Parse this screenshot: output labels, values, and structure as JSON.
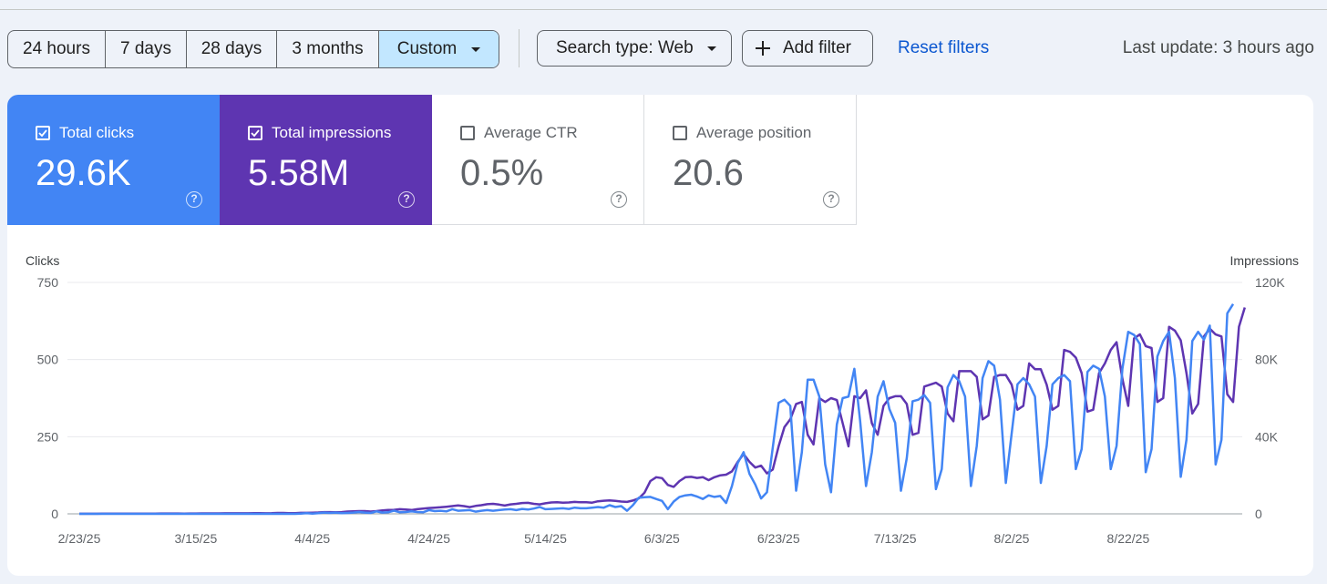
{
  "filters": {
    "ranges": [
      "24 hours",
      "7 days",
      "28 days",
      "3 months",
      "Custom"
    ],
    "selected_range": "Custom",
    "search_type": "Search type: Web",
    "add_filter": "Add filter",
    "reset": "Reset filters",
    "last_update": "Last update: 3 hours ago"
  },
  "metrics": [
    {
      "label": "Total clicks",
      "value": "29.6K",
      "checked": true,
      "color": "#4285f4"
    },
    {
      "label": "Total impressions",
      "value": "5.58M",
      "checked": true,
      "color": "#5e35b1"
    },
    {
      "label": "Average CTR",
      "value": "0.5%",
      "checked": false
    },
    {
      "label": "Average position",
      "value": "20.6",
      "checked": false
    }
  ],
  "chart_data": {
    "type": "line",
    "left_axis_label": "Clicks",
    "right_axis_label": "Impressions",
    "left_ticks": [
      "750",
      "500",
      "250",
      "0"
    ],
    "right_ticks": [
      "120K",
      "80K",
      "40K",
      "0"
    ],
    "ylim_left": [
      0,
      750
    ],
    "ylim_right": [
      0,
      120000
    ],
    "x_ticks": [
      "2/23/25",
      "3/15/25",
      "4/4/25",
      "4/24/25",
      "5/14/25",
      "6/3/25",
      "6/23/25",
      "7/13/25",
      "8/2/25",
      "8/22/25"
    ],
    "start_date": "2025-02-23",
    "series": [
      {
        "name": "Clicks",
        "axis": "left",
        "color": "#4285f4",
        "values": [
          0,
          0,
          0,
          0,
          0,
          0,
          0,
          0,
          0,
          0,
          0,
          0,
          0,
          0,
          0,
          0,
          0,
          0,
          0,
          0,
          0,
          0,
          0,
          0,
          0,
          0,
          0,
          0,
          0,
          0,
          0,
          0,
          0,
          0,
          0,
          0,
          0,
          0,
          1,
          2,
          1,
          2,
          4,
          3,
          4,
          2,
          3,
          4,
          6,
          4,
          3,
          8,
          4,
          5,
          10,
          5,
          6,
          8,
          6,
          5,
          12,
          9,
          10,
          8,
          15,
          10,
          11,
          12,
          7,
          10,
          12,
          10,
          12,
          14,
          15,
          12,
          16,
          14,
          17,
          22,
          15,
          16,
          17,
          18,
          16,
          20,
          18,
          18,
          20,
          22,
          20,
          28,
          22,
          25,
          10,
          28,
          52,
          54,
          55,
          48,
          42,
          15,
          40,
          55,
          60,
          62,
          56,
          48,
          60,
          55,
          58,
          35,
          90,
          165,
          200,
          130,
          95,
          50,
          70,
          215,
          360,
          370,
          350,
          75,
          200,
          435,
          435,
          380,
          160,
          70,
          290,
          375,
          380,
          470,
          300,
          90,
          200,
          380,
          430,
          340,
          295,
          75,
          180,
          365,
          370,
          385,
          360,
          80,
          145,
          410,
          450,
          430,
          380,
          90,
          220,
          440,
          495,
          480,
          370,
          100,
          260,
          420,
          440,
          420,
          380,
          100,
          220,
          420,
          440,
          450,
          430,
          145,
          210,
          460,
          480,
          470,
          380,
          145,
          220,
          470,
          590,
          580,
          550,
          135,
          210,
          510,
          560,
          590,
          440,
          120,
          240,
          560,
          590,
          565,
          610,
          160,
          240,
          650,
          680
        ]
      },
      {
        "name": "Impressions",
        "axis": "right",
        "color": "#5e35b1",
        "values": [
          50,
          50,
          50,
          50,
          100,
          100,
          100,
          100,
          150,
          150,
          150,
          150,
          150,
          150,
          200,
          200,
          200,
          200,
          150,
          200,
          200,
          250,
          250,
          250,
          250,
          300,
          300,
          300,
          300,
          300,
          350,
          350,
          300,
          350,
          450,
          450,
          400,
          350,
          500,
          500,
          600,
          700,
          900,
          900,
          800,
          900,
          1200,
          1300,
          1400,
          1400,
          1200,
          1400,
          1800,
          2000,
          2100,
          2400,
          2200,
          2000,
          2400,
          2700,
          3000,
          3200,
          3400,
          3700,
          4000,
          4400,
          4000,
          3500,
          4100,
          4500,
          5000,
          5200,
          4800,
          4300,
          4900,
          5200,
          5600,
          5700,
          5200,
          4900,
          5500,
          5900,
          6000,
          5800,
          5900,
          6200,
          6000,
          6000,
          5800,
          6500,
          6800,
          7000,
          6700,
          6400,
          6200,
          6900,
          8000,
          11000,
          17000,
          19000,
          18500,
          15000,
          14000,
          17000,
          19000,
          19200,
          18600,
          19000,
          17500,
          19000,
          20000,
          20300,
          22000,
          27000,
          31000,
          27000,
          24000,
          25000,
          21000,
          23000,
          35000,
          45000,
          49000,
          57000,
          58000,
          41000,
          36000,
          60000,
          58000,
          60000,
          59000,
          47000,
          35000,
          61000,
          60000,
          64000,
          47000,
          41000,
          56000,
          60000,
          61000,
          61000,
          57000,
          41000,
          42000,
          66000,
          67000,
          68000,
          66000,
          52000,
          48000,
          74000,
          74000,
          74000,
          71000,
          49000,
          51000,
          71000,
          72000,
          72000,
          67000,
          54000,
          56000,
          78000,
          75000,
          75000,
          67000,
          54000,
          56000,
          85000,
          84000,
          81000,
          73000,
          53000,
          54000,
          73000,
          78000,
          85000,
          89000,
          70000,
          56000,
          91000,
          93000,
          87000,
          86000,
          58000,
          60000,
          97000,
          95000,
          90000,
          73000,
          52000,
          57000,
          92000,
          96000,
          93000,
          92000,
          62000,
          58000,
          97000,
          107000
        ]
      }
    ]
  }
}
